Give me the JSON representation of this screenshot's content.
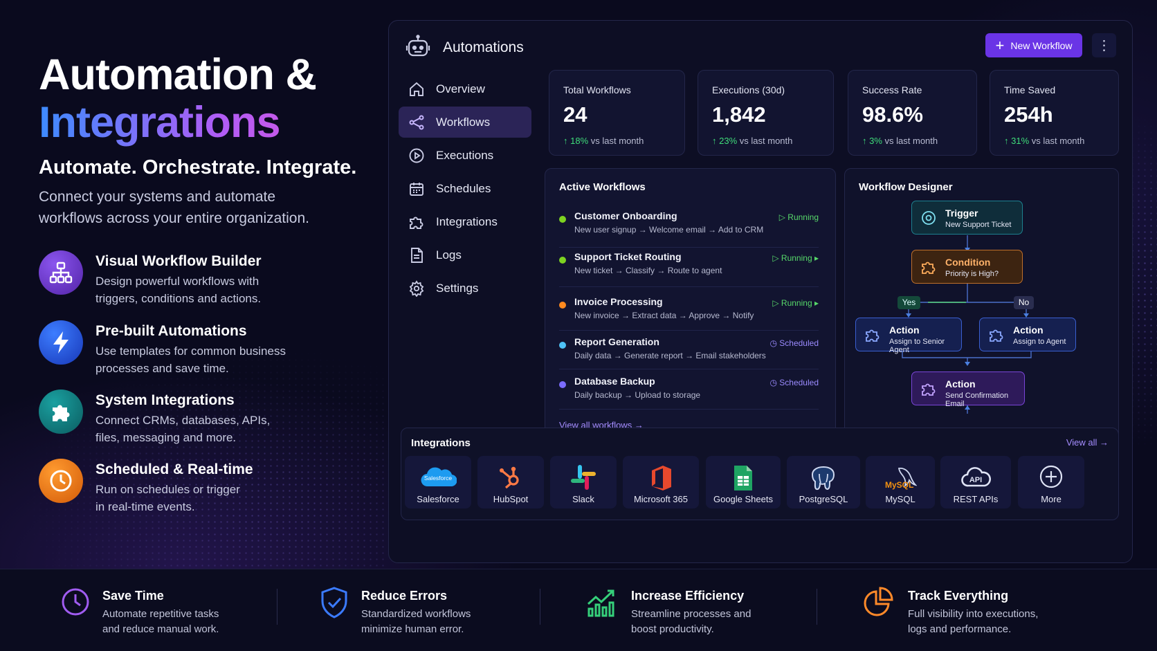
{
  "hero": {
    "title_line1": "Automation &",
    "title_line2": "Integrations",
    "tagline": "Automate. Orchestrate. Integrate.",
    "description_line1": "Connect your systems and automate",
    "description_line2": "workflows across your entire organization."
  },
  "features": [
    {
      "title": "Visual Workflow Builder",
      "line1": "Design powerful workflows with",
      "line2": "triggers, conditions and actions.",
      "icon": "hierarchy-icon",
      "color": "#6a35c8"
    },
    {
      "title": "Pre-built Automations",
      "line1": "Use templates for common business",
      "line2": "processes and save time.",
      "icon": "bolt-icon",
      "color": "#1f4fd8"
    },
    {
      "title": "System Integrations",
      "line1": "Connect CRMs, databases, APIs,",
      "line2": "files, messaging and more.",
      "icon": "puzzle-icon",
      "color": "#0f7e7e"
    },
    {
      "title": "Scheduled & Real-time",
      "line1": "Run on schedules or trigger",
      "line2": "in real-time events.",
      "icon": "clock-icon",
      "color": "#e5781a"
    }
  ],
  "app": {
    "title": "Automations",
    "new_button": "New Workflow"
  },
  "nav": [
    {
      "label": "Overview"
    },
    {
      "label": "Workflows"
    },
    {
      "label": "Executions"
    },
    {
      "label": "Schedules"
    },
    {
      "label": "Integrations"
    },
    {
      "label": "Logs"
    },
    {
      "label": "Settings"
    }
  ],
  "stats": [
    {
      "label": "Total Workflows",
      "value": "24",
      "delta": "18%",
      "suffix": "vs last month"
    },
    {
      "label": "Executions (30d)",
      "value": "1,842",
      "delta": "23%",
      "suffix": "vs last month"
    },
    {
      "label": "Success Rate",
      "value": "98.6%",
      "delta": "3%",
      "suffix": "vs last month"
    },
    {
      "label": "Time Saved",
      "value": "254h",
      "delta": "31%",
      "suffix": "vs last month"
    }
  ],
  "active": {
    "title": "Active Workflows",
    "view_all": "View all workflows →",
    "items": [
      {
        "name": "Customer Onboarding",
        "steps": "New user signup → Welcome email → Add to CRM",
        "status": "Running",
        "dot": "#7ed321",
        "status_color": "#57d96a"
      },
      {
        "name": "Support Ticket Routing",
        "steps": "New ticket → Classify → Route to agent",
        "status": "Running",
        "dot": "#7ed321",
        "status_color": "#57d96a"
      },
      {
        "name": "Invoice Processing",
        "steps": "New invoice → Extract data → Approve → Notify",
        "status": "Running",
        "dot": "#ff8a1f",
        "status_color": "#57d96a"
      },
      {
        "name": "Report Generation",
        "steps": "Daily data → Generate report → Email stakeholders",
        "status": "Scheduled",
        "dot": "#4fc3f7",
        "status_color": "#9b8bff"
      },
      {
        "name": "Database Backup",
        "steps": "Daily backup → Upload to storage",
        "status": "Scheduled",
        "dot": "#7b6cff",
        "status_color": "#9b8bff"
      }
    ]
  },
  "designer": {
    "title": "Workflow Designer",
    "trigger": {
      "title": "Trigger",
      "sub": "New Support Ticket"
    },
    "condition": {
      "title": "Condition",
      "sub": "Priority is High?"
    },
    "yes": "Yes",
    "no": "No",
    "action1": {
      "title": "Action",
      "sub": "Assign to Senior Agent"
    },
    "action2": {
      "title": "Action",
      "sub": "Assign to Agent"
    },
    "action3": {
      "title": "Action",
      "sub": "Send Confirmation Email"
    }
  },
  "integrations": {
    "title": "Integrations",
    "view_all": "View all →",
    "salesforce_text": "Salesforce",
    "mysql_text": "MySQL",
    "api_text": "API",
    "items": [
      {
        "label": "Salesforce",
        "icon": "salesforce-icon"
      },
      {
        "label": "HubSpot",
        "icon": "hubspot-icon"
      },
      {
        "label": "Slack",
        "icon": "slack-icon"
      },
      {
        "label": "Microsoft 365",
        "icon": "microsoft365-icon"
      },
      {
        "label": "Google Sheets",
        "icon": "google-sheets-icon"
      },
      {
        "label": "PostgreSQL",
        "icon": "postgresql-icon"
      },
      {
        "label": "MySQL",
        "icon": "mysql-icon"
      },
      {
        "label": "REST APIs",
        "icon": "rest-api-icon"
      },
      {
        "label": "More",
        "icon": "plus-circle-icon"
      }
    ]
  },
  "benefits": [
    {
      "title": "Save Time",
      "line1": "Automate repetitive tasks",
      "line2": "and reduce manual work.",
      "icon": "clock-icon"
    },
    {
      "title": "Reduce Errors",
      "line1": "Standardized workflows",
      "line2": "minimize human error.",
      "icon": "shield-check-icon"
    },
    {
      "title": "Increase Efficiency",
      "line1": "Streamline processes and",
      "line2": "boost productivity.",
      "icon": "growth-chart-icon"
    },
    {
      "title": "Track Everything",
      "line1": "Full visibility into executions,",
      "line2": "logs and performance.",
      "icon": "pie-chart-icon"
    }
  ]
}
